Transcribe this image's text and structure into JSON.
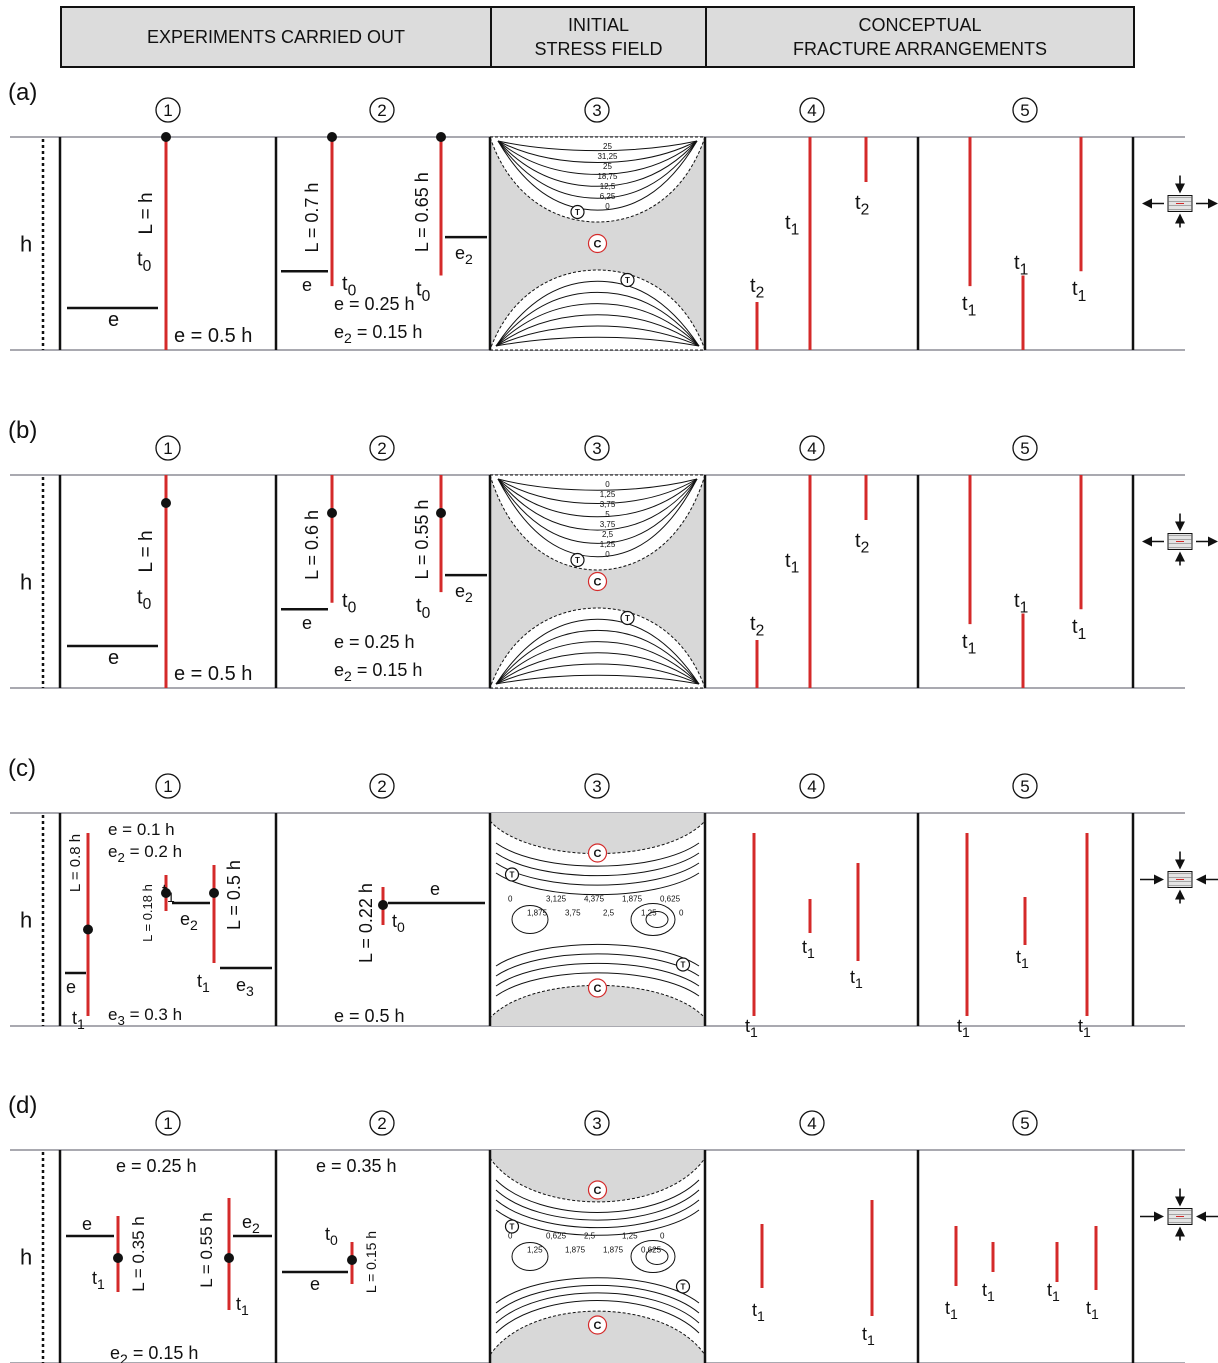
{
  "header": {
    "col1": "EXPERIMENTS CARRIED OUT",
    "col2": "INITIAL\nSTRESS FIELD",
    "col3": "CONCEPTUAL\nFRACTURE ARRANGEMENTS"
  },
  "column_numbers": [
    "①",
    "②",
    "③",
    "④",
    "⑤"
  ],
  "h_label": "h",
  "region_labels": {
    "compression": "C",
    "tension": "T"
  },
  "colors": {
    "fracture": "#d42a2a",
    "layer": "#a9a9b0",
    "stress_fill": "#d8d8d8",
    "ink": "#111111"
  },
  "rows": [
    {
      "label": "(a)",
      "exp1": {
        "L": "L = h",
        "t0": "t0",
        "e": "e",
        "e_value": "e = 0.5 h"
      },
      "exp2": {
        "L1": "L = 0.7 h",
        "L2": "L = 0.65 h",
        "t0": "t0",
        "e": "e",
        "e2": "e2",
        "e_value": "e = 0.25 h",
        "e2_value": "e2 = 0.15 h"
      },
      "contours": [
        "25",
        "31,25",
        "25",
        "18,75",
        "12,5",
        "6,25",
        "0"
      ],
      "col4": [
        "t1",
        "t2",
        "t2"
      ],
      "col5": [
        "t1",
        "t1",
        "t1"
      ]
    },
    {
      "label": "(b)",
      "exp1": {
        "L": "L = h",
        "t0": "t0",
        "e": "e",
        "e_value": "e = 0.5 h"
      },
      "exp2": {
        "L1": "L = 0.6 h",
        "L2": "L = 0.55 h",
        "t0": "t0",
        "e": "e",
        "e2": "e2",
        "e_value": "e = 0.25 h",
        "e2_value": "e2 = 0.15 h"
      },
      "contours": [
        "0",
        "1,25",
        "3,75",
        "5",
        "3,75",
        "2,5",
        "1,25",
        "0"
      ],
      "col4": [
        "t1",
        "t2",
        "t2"
      ],
      "col5": [
        "t1",
        "t1",
        "t1"
      ]
    },
    {
      "label": "(c)",
      "exp1": {
        "L1": "L = 0.8 h",
        "L2": "L = 0.18 h",
        "L3": "L = 0.5 h",
        "e": "e",
        "e2": "e2",
        "e3": "e3",
        "t1": "t1",
        "e_value": "e = 0.1 h",
        "e2_value": "e2 = 0.2 h",
        "e3_value": "e3 = 0.3 h"
      },
      "exp2": {
        "L": "L = 0.22 h",
        "t0": "t0",
        "e": "e",
        "e_value": "e = 0.5 h"
      },
      "contours": [
        "0",
        "1,875",
        "3,125",
        "3,75",
        "4,375",
        "2,5",
        "1,875",
        "1,25",
        "0,625",
        "0"
      ],
      "col4": [
        "t1",
        "t1",
        "t1"
      ],
      "col5": [
        "t1",
        "t1",
        "t1"
      ]
    },
    {
      "label": "(d)",
      "exp1": {
        "L1": "L = 0.35 h",
        "L2": "L = 0.55 h",
        "e": "e",
        "e2": "e2",
        "t1": "t1",
        "e_value": "e = 0.25 h",
        "e2_value": "e2 = 0.15 h"
      },
      "exp2": {
        "L": "L = 0.15 h",
        "t0": "t0",
        "e": "e",
        "e_value": "e = 0.35 h"
      },
      "contours": [
        "0",
        "1,25",
        "0,625",
        "1,875",
        "2,5",
        "1,875",
        "1,25",
        "0,625",
        "0"
      ],
      "col4": [
        "t1",
        "t1"
      ],
      "col5": [
        "t1",
        "t1",
        "t1",
        "t1"
      ]
    }
  ]
}
